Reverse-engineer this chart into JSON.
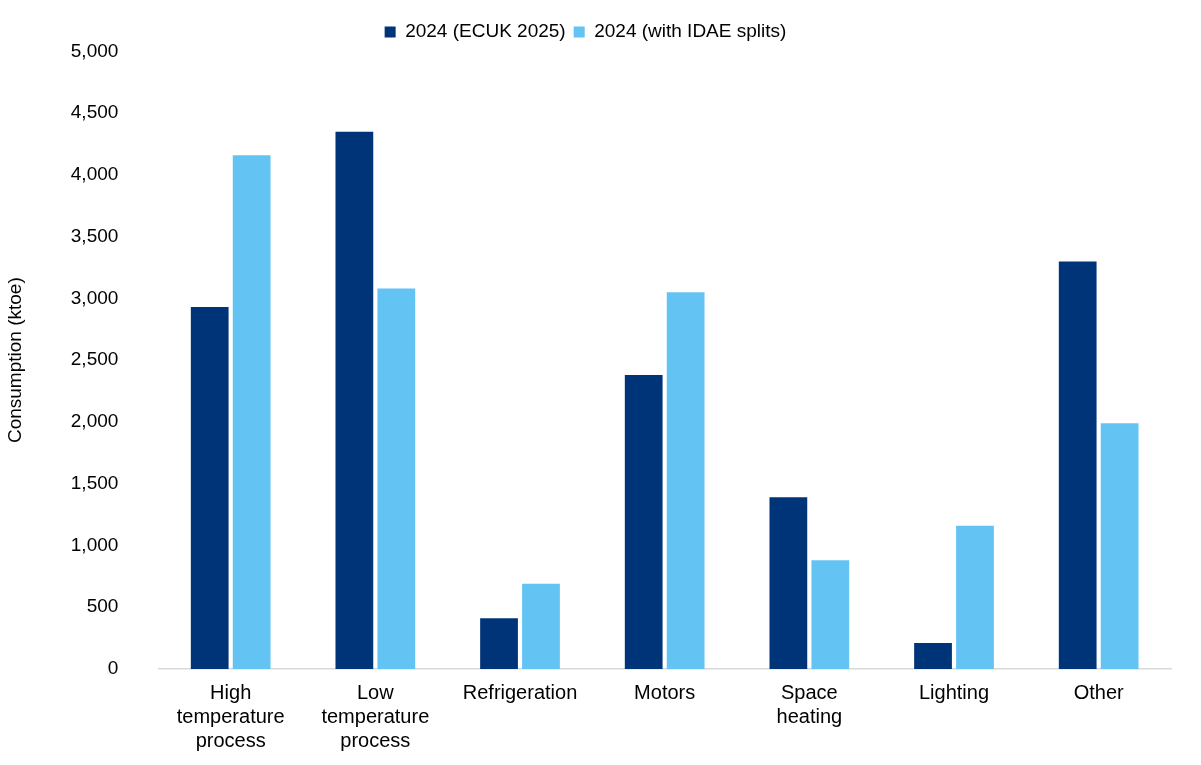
{
  "chart_data": {
    "type": "bar",
    "ylabel": "Consumption (ktoe)",
    "categories": [
      "High temperature process",
      "Low temperature process",
      "Refrigeration",
      "Motors",
      "Space heating",
      "Lighting",
      "Other"
    ],
    "series": [
      {
        "name": "2024 (ECUK 2025)",
        "color": "#003478",
        "values": [
          2930,
          4350,
          410,
          2380,
          1390,
          210,
          3300
        ]
      },
      {
        "name": "2024 (with IDAE splits)",
        "color": "#63c3f3",
        "values": [
          4160,
          3080,
          690,
          3050,
          880,
          1160,
          1990
        ]
      }
    ],
    "ylim": [
      0,
      5000
    ],
    "yticks": [
      0,
      500,
      {
        "value": 1000,
        "label": "1,000"
      },
      {
        "value": 1500,
        "label": "1,500"
      },
      {
        "value": 2000,
        "label": "2,000"
      },
      {
        "value": 2500,
        "label": "2,500"
      },
      {
        "value": 3000,
        "label": "3,000"
      },
      {
        "value": 3500,
        "label": "3,500"
      },
      {
        "value": 4000,
        "label": "4,000"
      },
      {
        "value": 4500,
        "label": "4,500"
      },
      {
        "value": 5000,
        "label": "5,000"
      }
    ],
    "grid": false,
    "legend": "top"
  }
}
